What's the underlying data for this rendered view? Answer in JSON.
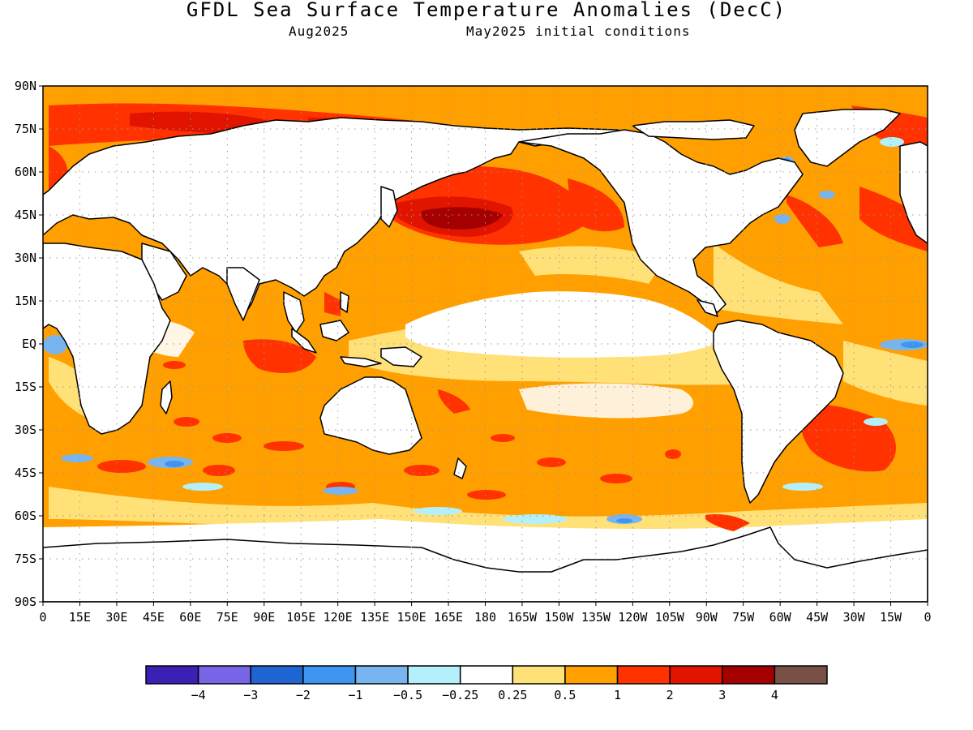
{
  "header": {
    "title": "GFDL Sea Surface Temperature Anomalies (DecC)",
    "valid_month": "Aug2025",
    "initial_conditions": "May2025 initial conditions"
  },
  "map": {
    "projection": "cylindrical equidistant",
    "lon_range": [
      0,
      360
    ],
    "lat_range": [
      -90,
      90
    ],
    "grid_lines": "dotted",
    "lat_ticks": [
      {
        "lat": 90,
        "label": "90N"
      },
      {
        "lat": 75,
        "label": "75N"
      },
      {
        "lat": 60,
        "label": "60N"
      },
      {
        "lat": 45,
        "label": "45N"
      },
      {
        "lat": 30,
        "label": "30N"
      },
      {
        "lat": 15,
        "label": "15N"
      },
      {
        "lat": 0,
        "label": "EQ"
      },
      {
        "lat": -15,
        "label": "15S"
      },
      {
        "lat": -30,
        "label": "30S"
      },
      {
        "lat": -45,
        "label": "45S"
      },
      {
        "lat": -60,
        "label": "60S"
      },
      {
        "lat": -75,
        "label": "75S"
      },
      {
        "lat": -90,
        "label": "90S"
      }
    ],
    "lon_ticks": [
      {
        "lon": 0,
        "label": "0"
      },
      {
        "lon": 15,
        "label": "15E"
      },
      {
        "lon": 30,
        "label": "30E"
      },
      {
        "lon": 45,
        "label": "45E"
      },
      {
        "lon": 60,
        "label": "60E"
      },
      {
        "lon": 75,
        "label": "75E"
      },
      {
        "lon": 90,
        "label": "90E"
      },
      {
        "lon": 105,
        "label": "105E"
      },
      {
        "lon": 120,
        "label": "120E"
      },
      {
        "lon": 135,
        "label": "135E"
      },
      {
        "lon": 150,
        "label": "150E"
      },
      {
        "lon": 165,
        "label": "165E"
      },
      {
        "lon": 180,
        "label": "180"
      },
      {
        "lon": 195,
        "label": "165W"
      },
      {
        "lon": 210,
        "label": "150W"
      },
      {
        "lon": 225,
        "label": "135W"
      },
      {
        "lon": 240,
        "label": "120W"
      },
      {
        "lon": 255,
        "label": "105W"
      },
      {
        "lon": 270,
        "label": "90W"
      },
      {
        "lon": 285,
        "label": "75W"
      },
      {
        "lon": 300,
        "label": "60W"
      },
      {
        "lon": 315,
        "label": "45W"
      },
      {
        "lon": 330,
        "label": "30W"
      },
      {
        "lon": 345,
        "label": "15W"
      },
      {
        "lon": 360,
        "label": "0"
      }
    ],
    "colors": {
      "land": "#ffffff",
      "coastline": "#000000",
      "ocean_base": "#ffa500"
    }
  },
  "colorbar": {
    "colors": [
      "#3c1fb4",
      "#7864e6",
      "#1e64d2",
      "#3c96f0",
      "#78b4f0",
      "#b4f0fa",
      "#ffffff",
      "#ffe178",
      "#ffa000",
      "#ff3200",
      "#e11400",
      "#a50000",
      "#785046"
    ],
    "labels": [
      "-4",
      "-3",
      "-2",
      "-1",
      "-0.5",
      "-0.25",
      "0.25",
      "0.5",
      "1",
      "2",
      "3",
      "4"
    ]
  }
}
